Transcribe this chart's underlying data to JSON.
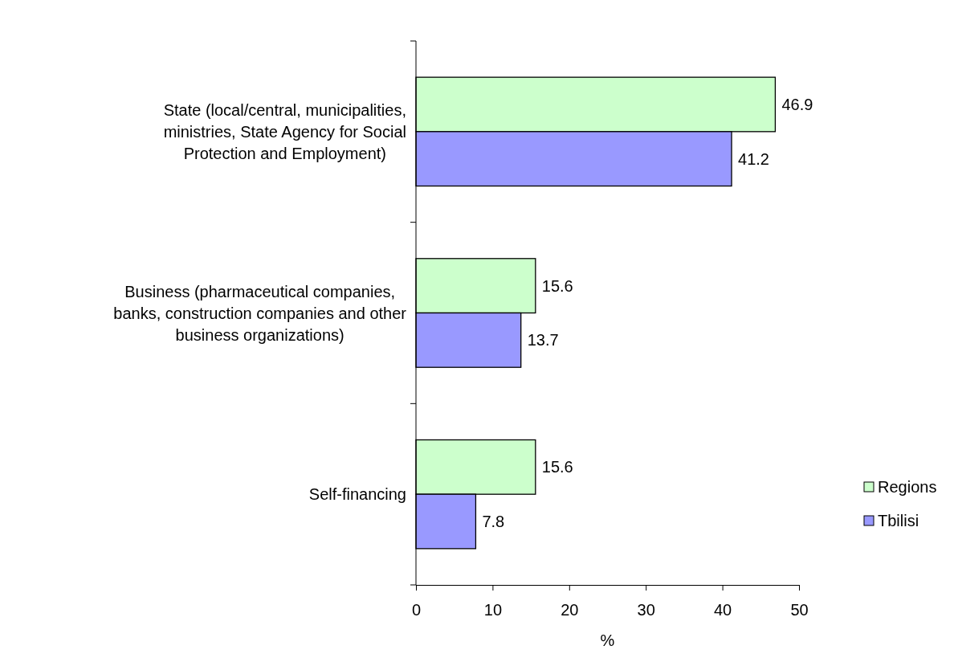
{
  "chart_data": {
    "type": "bar",
    "orientation": "horizontal",
    "categories": [
      "State (local/central, municipalities, ministries, State Agency for Social Protection and Employment)",
      "Business (pharmaceutical companies, banks, construction companies and other business organizations)",
      "Self-financing"
    ],
    "series": [
      {
        "name": "Regions",
        "color": "#ccffcc",
        "values": [
          46.9,
          15.6,
          15.6
        ]
      },
      {
        "name": "Tbilisi",
        "color": "#9999ff",
        "values": [
          41.2,
          13.7,
          7.8
        ]
      }
    ],
    "xlim": [
      0,
      50
    ],
    "xticks": [
      0,
      10,
      20,
      30,
      40,
      50
    ],
    "xlabel": "%",
    "data_labels": true,
    "legend": "right",
    "grid": false
  }
}
